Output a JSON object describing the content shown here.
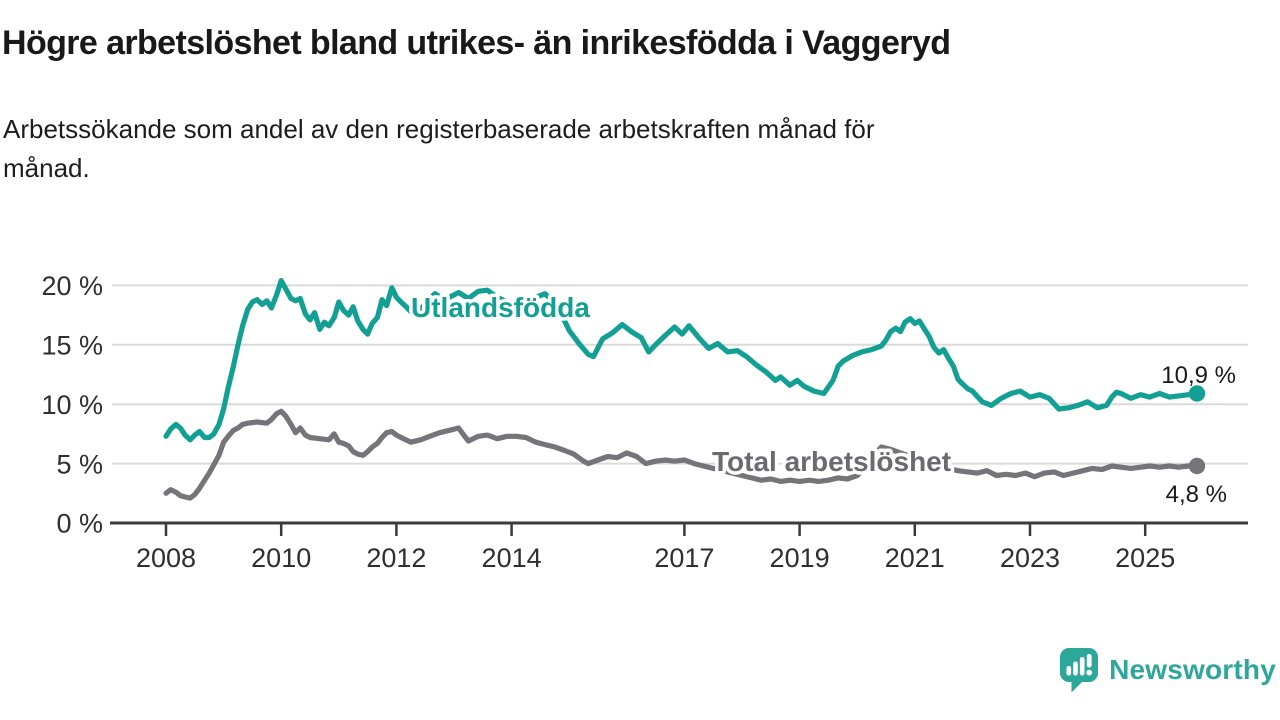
{
  "header": {
    "title": "Högre arbetslöshet bland utrikes- än inrikesfödda i Vaggeryd",
    "subtitle_line1": "Arbetssökande som andel av den registerbaserade arbetskraften månad för",
    "subtitle_line2": "månad."
  },
  "chart_data": {
    "type": "line",
    "unit": "%",
    "grid": "horizontal",
    "legend_position": "inline-labels",
    "x_ticks": [
      2008,
      2010,
      2012,
      2014,
      2017,
      2019,
      2021,
      2023,
      2025
    ],
    "x_tick_labels": [
      "2008",
      "2010",
      "2012",
      "2014",
      "2017",
      "2019",
      "2021",
      "2023",
      "2025"
    ],
    "y_ticks": [
      0,
      5,
      10,
      15,
      20
    ],
    "y_tick_labels": [
      "0 %",
      "5 %",
      "10 %",
      "15 %",
      "20 %"
    ],
    "ylim": [
      0,
      21
    ],
    "xlim": [
      2007.0,
      2026.9
    ],
    "axis_color": "#3a3a3a",
    "grid_color": "#dbdbdb",
    "series": [
      {
        "name": "Utlandsfödda",
        "color": "#13a094",
        "label_color": "#13a094",
        "end_label": "10,9 %",
        "end_value": 10.9,
        "points": [
          [
            2008.0,
            7.3
          ],
          [
            2008.08,
            7.9
          ],
          [
            2008.17,
            8.3
          ],
          [
            2008.25,
            8.0
          ],
          [
            2008.33,
            7.4
          ],
          [
            2008.42,
            7.0
          ],
          [
            2008.5,
            7.4
          ],
          [
            2008.58,
            7.7
          ],
          [
            2008.67,
            7.2
          ],
          [
            2008.75,
            7.2
          ],
          [
            2008.83,
            7.5
          ],
          [
            2008.92,
            8.3
          ],
          [
            2009.0,
            9.6
          ],
          [
            2009.08,
            11.4
          ],
          [
            2009.17,
            13.2
          ],
          [
            2009.25,
            15.0
          ],
          [
            2009.33,
            16.6
          ],
          [
            2009.42,
            18.0
          ],
          [
            2009.5,
            18.6
          ],
          [
            2009.58,
            18.8
          ],
          [
            2009.67,
            18.4
          ],
          [
            2009.75,
            18.7
          ],
          [
            2009.83,
            18.1
          ],
          [
            2009.92,
            19.2
          ],
          [
            2010.0,
            20.4
          ],
          [
            2010.08,
            19.7
          ],
          [
            2010.17,
            18.9
          ],
          [
            2010.25,
            18.7
          ],
          [
            2010.33,
            18.9
          ],
          [
            2010.42,
            17.6
          ],
          [
            2010.5,
            17.1
          ],
          [
            2010.58,
            17.7
          ],
          [
            2010.67,
            16.3
          ],
          [
            2010.75,
            16.9
          ],
          [
            2010.83,
            16.6
          ],
          [
            2010.92,
            17.3
          ],
          [
            2011.0,
            18.6
          ],
          [
            2011.08,
            17.9
          ],
          [
            2011.17,
            17.5
          ],
          [
            2011.25,
            18.2
          ],
          [
            2011.33,
            17.0
          ],
          [
            2011.42,
            16.3
          ],
          [
            2011.5,
            15.9
          ],
          [
            2011.58,
            16.8
          ],
          [
            2011.67,
            17.3
          ],
          [
            2011.75,
            18.8
          ],
          [
            2011.83,
            18.3
          ],
          [
            2011.92,
            19.8
          ],
          [
            2012.0,
            19.0
          ],
          [
            2012.08,
            18.6
          ],
          [
            2012.17,
            18.2
          ],
          [
            2012.25,
            17.8
          ],
          [
            2012.33,
            18.3
          ],
          [
            2012.42,
            18.0
          ],
          [
            2012.58,
            18.9
          ],
          [
            2012.67,
            19.3
          ],
          [
            2012.83,
            18.8
          ],
          [
            2013.0,
            19.2
          ],
          [
            2013.08,
            19.4
          ],
          [
            2013.25,
            18.9
          ],
          [
            2013.42,
            19.5
          ],
          [
            2013.58,
            19.6
          ],
          [
            2013.75,
            19.0
          ],
          [
            2013.92,
            18.6
          ],
          [
            2014.08,
            18.4
          ],
          [
            2014.25,
            18.7
          ],
          [
            2014.42,
            19.0
          ],
          [
            2014.58,
            19.3
          ],
          [
            2014.75,
            18.5
          ],
          [
            2014.92,
            17.0
          ],
          [
            2015.0,
            16.2
          ],
          [
            2015.17,
            15.1
          ],
          [
            2015.33,
            14.2
          ],
          [
            2015.42,
            14.0
          ],
          [
            2015.58,
            15.5
          ],
          [
            2015.75,
            16.0
          ],
          [
            2015.92,
            16.7
          ],
          [
            2016.08,
            16.1
          ],
          [
            2016.25,
            15.6
          ],
          [
            2016.38,
            14.4
          ],
          [
            2016.5,
            15.0
          ],
          [
            2016.67,
            15.8
          ],
          [
            2016.83,
            16.5
          ],
          [
            2016.96,
            15.9
          ],
          [
            2017.08,
            16.6
          ],
          [
            2017.25,
            15.6
          ],
          [
            2017.42,
            14.7
          ],
          [
            2017.58,
            15.1
          ],
          [
            2017.75,
            14.4
          ],
          [
            2017.92,
            14.5
          ],
          [
            2018.08,
            14.0
          ],
          [
            2018.25,
            13.3
          ],
          [
            2018.42,
            12.7
          ],
          [
            2018.58,
            12.0
          ],
          [
            2018.67,
            12.3
          ],
          [
            2018.83,
            11.6
          ],
          [
            2018.96,
            12.0
          ],
          [
            2019.08,
            11.5
          ],
          [
            2019.25,
            11.1
          ],
          [
            2019.42,
            10.9
          ],
          [
            2019.58,
            12.0
          ],
          [
            2019.67,
            13.2
          ],
          [
            2019.75,
            13.6
          ],
          [
            2019.92,
            14.1
          ],
          [
            2020.08,
            14.4
          ],
          [
            2020.25,
            14.6
          ],
          [
            2020.42,
            14.9
          ],
          [
            2020.5,
            15.4
          ],
          [
            2020.58,
            16.1
          ],
          [
            2020.67,
            16.4
          ],
          [
            2020.75,
            16.1
          ],
          [
            2020.83,
            16.9
          ],
          [
            2020.92,
            17.2
          ],
          [
            2021.0,
            16.8
          ],
          [
            2021.08,
            17.0
          ],
          [
            2021.17,
            16.3
          ],
          [
            2021.25,
            15.7
          ],
          [
            2021.33,
            14.8
          ],
          [
            2021.42,
            14.3
          ],
          [
            2021.5,
            14.6
          ],
          [
            2021.58,
            13.9
          ],
          [
            2021.67,
            13.2
          ],
          [
            2021.75,
            12.1
          ],
          [
            2021.83,
            11.7
          ],
          [
            2021.92,
            11.3
          ],
          [
            2022.0,
            11.1
          ],
          [
            2022.17,
            10.2
          ],
          [
            2022.33,
            9.9
          ],
          [
            2022.5,
            10.5
          ],
          [
            2022.67,
            10.9
          ],
          [
            2022.83,
            11.1
          ],
          [
            2023.0,
            10.6
          ],
          [
            2023.17,
            10.8
          ],
          [
            2023.33,
            10.5
          ],
          [
            2023.5,
            9.6
          ],
          [
            2023.67,
            9.7
          ],
          [
            2023.83,
            9.9
          ],
          [
            2024.0,
            10.2
          ],
          [
            2024.17,
            9.7
          ],
          [
            2024.33,
            9.9
          ],
          [
            2024.42,
            10.6
          ],
          [
            2024.5,
            11.0
          ],
          [
            2024.58,
            10.9
          ],
          [
            2024.75,
            10.5
          ],
          [
            2024.92,
            10.8
          ],
          [
            2025.08,
            10.6
          ],
          [
            2025.25,
            10.9
          ],
          [
            2025.42,
            10.6
          ],
          [
            2025.58,
            10.7
          ],
          [
            2025.75,
            10.8
          ],
          [
            2025.9,
            10.9
          ]
        ]
      },
      {
        "name": "Total arbetslöshet",
        "color": "#747479",
        "label_color": "#6a6a6f",
        "end_label": "4,8 %",
        "end_value": 4.8,
        "points": [
          [
            2008.0,
            2.5
          ],
          [
            2008.08,
            2.8
          ],
          [
            2008.17,
            2.6
          ],
          [
            2008.25,
            2.3
          ],
          [
            2008.33,
            2.2
          ],
          [
            2008.42,
            2.1
          ],
          [
            2008.5,
            2.4
          ],
          [
            2008.58,
            2.9
          ],
          [
            2008.67,
            3.6
          ],
          [
            2008.75,
            4.2
          ],
          [
            2008.83,
            4.9
          ],
          [
            2008.92,
            5.7
          ],
          [
            2009.0,
            6.8
          ],
          [
            2009.08,
            7.3
          ],
          [
            2009.17,
            7.8
          ],
          [
            2009.25,
            8.0
          ],
          [
            2009.33,
            8.3
          ],
          [
            2009.42,
            8.4
          ],
          [
            2009.58,
            8.5
          ],
          [
            2009.75,
            8.4
          ],
          [
            2009.83,
            8.7
          ],
          [
            2009.92,
            9.2
          ],
          [
            2010.0,
            9.4
          ],
          [
            2010.08,
            9.0
          ],
          [
            2010.17,
            8.3
          ],
          [
            2010.25,
            7.6
          ],
          [
            2010.33,
            8.0
          ],
          [
            2010.42,
            7.4
          ],
          [
            2010.5,
            7.2
          ],
          [
            2010.67,
            7.1
          ],
          [
            2010.83,
            7.0
          ],
          [
            2010.92,
            7.5
          ],
          [
            2011.0,
            6.8
          ],
          [
            2011.08,
            6.7
          ],
          [
            2011.17,
            6.5
          ],
          [
            2011.25,
            6.0
          ],
          [
            2011.33,
            5.8
          ],
          [
            2011.42,
            5.7
          ],
          [
            2011.5,
            6.0
          ],
          [
            2011.58,
            6.4
          ],
          [
            2011.67,
            6.7
          ],
          [
            2011.75,
            7.2
          ],
          [
            2011.83,
            7.6
          ],
          [
            2011.92,
            7.7
          ],
          [
            2012.0,
            7.4
          ],
          [
            2012.08,
            7.2
          ],
          [
            2012.25,
            6.8
          ],
          [
            2012.42,
            7.0
          ],
          [
            2012.58,
            7.3
          ],
          [
            2012.75,
            7.6
          ],
          [
            2012.92,
            7.8
          ],
          [
            2013.08,
            8.0
          ],
          [
            2013.17,
            7.4
          ],
          [
            2013.25,
            6.9
          ],
          [
            2013.42,
            7.3
          ],
          [
            2013.58,
            7.4
          ],
          [
            2013.75,
            7.1
          ],
          [
            2013.92,
            7.3
          ],
          [
            2014.08,
            7.3
          ],
          [
            2014.25,
            7.2
          ],
          [
            2014.42,
            6.8
          ],
          [
            2014.58,
            6.6
          ],
          [
            2014.75,
            6.4
          ],
          [
            2014.92,
            6.1
          ],
          [
            2015.08,
            5.8
          ],
          [
            2015.25,
            5.2
          ],
          [
            2015.33,
            5.0
          ],
          [
            2015.5,
            5.3
          ],
          [
            2015.67,
            5.6
          ],
          [
            2015.83,
            5.5
          ],
          [
            2016.0,
            5.9
          ],
          [
            2016.17,
            5.6
          ],
          [
            2016.33,
            5.0
          ],
          [
            2016.5,
            5.2
          ],
          [
            2016.67,
            5.3
          ],
          [
            2016.83,
            5.2
          ],
          [
            2017.0,
            5.3
          ],
          [
            2017.17,
            5.0
          ],
          [
            2017.33,
            4.8
          ],
          [
            2017.5,
            4.6
          ],
          [
            2017.67,
            4.4
          ],
          [
            2017.83,
            4.2
          ],
          [
            2018.0,
            4.0
          ],
          [
            2018.17,
            3.8
          ],
          [
            2018.33,
            3.6
          ],
          [
            2018.5,
            3.7
          ],
          [
            2018.67,
            3.5
          ],
          [
            2018.83,
            3.6
          ],
          [
            2019.0,
            3.5
          ],
          [
            2019.17,
            3.6
          ],
          [
            2019.33,
            3.5
          ],
          [
            2019.5,
            3.6
          ],
          [
            2019.67,
            3.8
          ],
          [
            2019.83,
            3.7
          ],
          [
            2020.0,
            4.0
          ],
          [
            2020.17,
            4.8
          ],
          [
            2020.33,
            5.9
          ],
          [
            2020.42,
            6.4
          ],
          [
            2020.58,
            6.2
          ],
          [
            2020.75,
            5.9
          ],
          [
            2020.92,
            5.6
          ],
          [
            2021.08,
            5.3
          ],
          [
            2021.25,
            5.0
          ],
          [
            2021.42,
            4.8
          ],
          [
            2021.58,
            4.6
          ],
          [
            2021.75,
            4.4
          ],
          [
            2021.92,
            4.3
          ],
          [
            2022.08,
            4.2
          ],
          [
            2022.25,
            4.4
          ],
          [
            2022.42,
            4.0
          ],
          [
            2022.58,
            4.1
          ],
          [
            2022.75,
            4.0
          ],
          [
            2022.92,
            4.2
          ],
          [
            2023.08,
            3.9
          ],
          [
            2023.25,
            4.2
          ],
          [
            2023.42,
            4.3
          ],
          [
            2023.58,
            4.0
          ],
          [
            2023.75,
            4.2
          ],
          [
            2023.92,
            4.4
          ],
          [
            2024.08,
            4.6
          ],
          [
            2024.25,
            4.5
          ],
          [
            2024.42,
            4.8
          ],
          [
            2024.58,
            4.7
          ],
          [
            2024.75,
            4.6
          ],
          [
            2024.92,
            4.7
          ],
          [
            2025.08,
            4.8
          ],
          [
            2025.25,
            4.7
          ],
          [
            2025.42,
            4.8
          ],
          [
            2025.58,
            4.7
          ],
          [
            2025.75,
            4.8
          ],
          [
            2025.9,
            4.8
          ]
        ]
      }
    ]
  },
  "branding": {
    "logo_text": "Newsworthy",
    "logo_color": "#2ea79b"
  }
}
